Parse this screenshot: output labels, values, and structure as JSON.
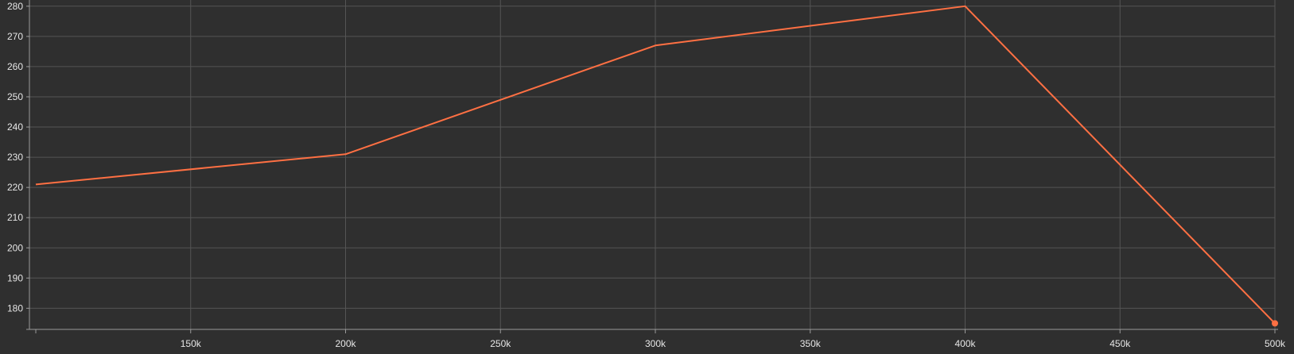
{
  "chart_data": {
    "type": "line",
    "title": "",
    "xlabel": "",
    "ylabel": "",
    "x": [
      100000,
      200000,
      300000,
      400000,
      500000
    ],
    "series": [
      {
        "values": [
          221,
          231,
          267,
          280,
          175
        ],
        "color": "#ff7043"
      }
    ],
    "xlim": [
      100000,
      500000
    ],
    "ylim": [
      173,
      281
    ],
    "x_ticks": [
      150000,
      200000,
      250000,
      300000,
      350000,
      400000,
      450000,
      500000
    ],
    "x_tick_labels": [
      "150k",
      "200k",
      "250k",
      "300k",
      "350k",
      "400k",
      "450k",
      "500k"
    ],
    "y_ticks": [
      180,
      190,
      200,
      210,
      220,
      230,
      240,
      250,
      260,
      270,
      280
    ],
    "y_tick_labels": [
      "180",
      "190",
      "200",
      "210",
      "220",
      "230",
      "240",
      "250",
      "260",
      "270",
      "280"
    ],
    "grid": true,
    "legend": "none",
    "last_point_marker": true
  },
  "colors": {
    "background": "#2f2f2f",
    "grid": "#555555",
    "axis": "#9a9a9a",
    "text": "#e6e6e6"
  }
}
